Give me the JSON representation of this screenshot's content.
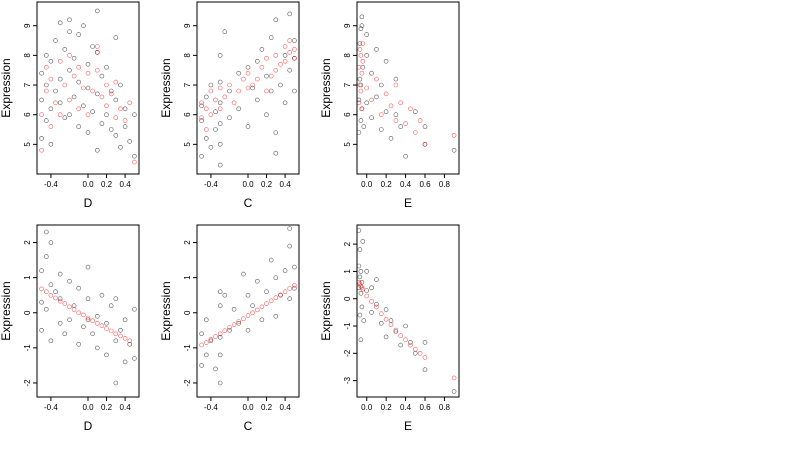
{
  "figure": {
    "ylabel": "Expression",
    "colors": {
      "base": "#000000",
      "highlight": "#ff0000"
    }
  },
  "chart_data": [
    {
      "type": "scatter",
      "row": 0,
      "col": 0,
      "xlabel": "D",
      "ylabel": "Expression",
      "xlim": [
        -0.55,
        0.55
      ],
      "ylim": [
        4.0,
        9.8
      ],
      "xticks": [
        -0.4,
        0.0,
        0.2,
        0.4
      ],
      "xtick_labels": [
        "-0.4",
        "0.0",
        "0.2",
        "0.4"
      ],
      "yticks": [
        5,
        6,
        7,
        8,
        9
      ],
      "ytick_labels": [
        "5",
        "6",
        "7",
        "8",
        "9"
      ],
      "series": [
        {
          "color": "#000000",
          "x": [
            -0.5,
            -0.5,
            -0.5,
            -0.45,
            -0.45,
            -0.45,
            -0.4,
            -0.4,
            -0.4,
            -0.35,
            -0.35,
            -0.3,
            -0.3,
            -0.3,
            -0.25,
            -0.25,
            -0.2,
            -0.2,
            -0.2,
            -0.15,
            -0.15,
            -0.1,
            -0.1,
            -0.1,
            -0.05,
            -0.05,
            0.0,
            0.0,
            0.0,
            0.05,
            0.05,
            0.1,
            0.1,
            0.1,
            0.15,
            0.15,
            0.2,
            0.2,
            0.25,
            0.25,
            0.3,
            0.3,
            0.35,
            0.35,
            0.4,
            0.4,
            0.45,
            0.5,
            0.5,
            0.3,
            -0.2,
            0.1
          ],
          "y": [
            5.2,
            6.5,
            7.4,
            5.8,
            7.0,
            8.0,
            6.2,
            7.8,
            5.0,
            6.8,
            8.5,
            6.4,
            7.2,
            9.1,
            5.9,
            8.2,
            6.0,
            7.5,
            8.8,
            6.6,
            7.9,
            5.6,
            7.1,
            8.7,
            6.3,
            9.0,
            5.4,
            6.9,
            7.7,
            6.1,
            8.3,
            6.7,
            8.1,
            9.5,
            5.7,
            7.3,
            6.0,
            7.6,
            5.5,
            6.8,
            5.3,
            6.5,
            4.9,
            7.0,
            5.6,
            6.2,
            5.1,
            4.6,
            6.0,
            8.6,
            9.2,
            4.8
          ]
        },
        {
          "color": "#ff0000",
          "x": [
            -0.5,
            -0.5,
            -0.45,
            -0.45,
            -0.4,
            -0.4,
            -0.35,
            -0.3,
            -0.3,
            -0.25,
            -0.2,
            -0.2,
            -0.15,
            -0.1,
            -0.1,
            -0.05,
            0.0,
            0.0,
            0.05,
            0.1,
            0.1,
            0.1,
            0.15,
            0.2,
            0.2,
            0.25,
            0.3,
            0.3,
            0.35,
            0.4,
            0.45,
            0.5
          ],
          "y": [
            4.8,
            6.0,
            6.8,
            7.6,
            5.6,
            7.2,
            6.4,
            7.8,
            6.0,
            7.0,
            6.5,
            8.0,
            7.3,
            6.2,
            7.6,
            6.9,
            7.4,
            6.0,
            6.8,
            8.1,
            8.3,
            7.5,
            6.6,
            7.0,
            6.3,
            6.7,
            5.9,
            7.1,
            6.2,
            5.8,
            6.4,
            4.4
          ]
        }
      ]
    },
    {
      "type": "scatter",
      "row": 0,
      "col": 1,
      "xlabel": "C",
      "ylabel": "Expression",
      "xlim": [
        -0.55,
        0.55
      ],
      "ylim": [
        4.0,
        9.8
      ],
      "xticks": [
        -0.4,
        0.0,
        0.2,
        0.4
      ],
      "xtick_labels": [
        "-0.4",
        "0.0",
        "0.2",
        "0.4"
      ],
      "yticks": [
        5,
        6,
        7,
        8,
        9
      ],
      "ytick_labels": [
        "5",
        "6",
        "7",
        "8",
        "9"
      ],
      "series": [
        {
          "color": "#000000",
          "x": [
            -0.5,
            -0.5,
            -0.5,
            -0.45,
            -0.45,
            -0.4,
            -0.4,
            -0.35,
            -0.35,
            -0.3,
            -0.3,
            -0.3,
            -0.3,
            -0.3,
            -0.25,
            -0.2,
            -0.2,
            -0.1,
            -0.1,
            0.0,
            0.0,
            0.05,
            0.1,
            0.1,
            0.15,
            0.2,
            0.2,
            0.25,
            0.25,
            0.3,
            0.3,
            0.35,
            0.4,
            0.4,
            0.45,
            0.45,
            0.5,
            0.5,
            0.5,
            -0.3,
            0.3
          ],
          "y": [
            4.6,
            5.8,
            6.3,
            5.2,
            6.6,
            4.9,
            7.0,
            5.5,
            6.1,
            4.3,
            5.0,
            5.7,
            6.4,
            7.1,
            8.8,
            5.9,
            6.8,
            6.2,
            7.4,
            5.6,
            7.6,
            6.9,
            6.5,
            7.8,
            8.2,
            6.0,
            7.3,
            6.8,
            8.6,
            5.4,
            9.2,
            7.0,
            6.4,
            8.0,
            7.5,
            9.4,
            6.8,
            7.9,
            8.5,
            8.0,
            4.7
          ]
        },
        {
          "color": "#ff0000",
          "x": [
            -0.5,
            -0.5,
            -0.45,
            -0.45,
            -0.4,
            -0.4,
            -0.35,
            -0.3,
            -0.3,
            -0.25,
            -0.2,
            -0.15,
            -0.1,
            -0.05,
            0.0,
            0.0,
            0.05,
            0.1,
            0.15,
            0.2,
            0.2,
            0.25,
            0.3,
            0.3,
            0.35,
            0.4,
            0.4,
            0.45,
            0.45,
            0.5,
            0.5
          ],
          "y": [
            5.9,
            6.4,
            5.5,
            6.2,
            6.0,
            6.8,
            6.5,
            6.2,
            6.9,
            6.6,
            7.0,
            6.4,
            6.8,
            7.2,
            6.9,
            7.4,
            7.0,
            7.2,
            7.6,
            6.8,
            7.9,
            7.3,
            7.5,
            8.0,
            7.7,
            7.8,
            8.3,
            8.1,
            8.5,
            7.9,
            8.2
          ]
        }
      ]
    },
    {
      "type": "scatter",
      "row": 0,
      "col": 2,
      "xlabel": "E",
      "ylabel": "Expression",
      "xlim": [
        -0.1,
        0.95
      ],
      "ylim": [
        4.0,
        9.8
      ],
      "xticks": [
        0.0,
        0.2,
        0.4,
        0.6,
        0.8
      ],
      "xtick_labels": [
        "0.0",
        "0.2",
        "0.4",
        "0.6",
        "0.8"
      ],
      "yticks": [
        5,
        6,
        7,
        8,
        9
      ],
      "ytick_labels": [
        "5",
        "6",
        "7",
        "8",
        "9"
      ],
      "series": [
        {
          "color": "#000000",
          "x": [
            -0.08,
            -0.08,
            -0.07,
            -0.07,
            -0.06,
            -0.06,
            -0.06,
            -0.05,
            -0.05,
            -0.04,
            -0.03,
            0.0,
            0.0,
            0.05,
            0.05,
            0.1,
            0.1,
            0.15,
            0.15,
            0.2,
            0.2,
            0.25,
            0.3,
            0.3,
            0.35,
            0.4,
            0.5,
            0.6,
            0.6,
            0.9,
            -0.05,
            0.0
          ],
          "y": [
            5.4,
            6.5,
            7.2,
            8.4,
            5.8,
            7.0,
            8.9,
            6.2,
            9.3,
            7.6,
            5.6,
            6.4,
            8.0,
            5.9,
            7.4,
            6.6,
            8.2,
            5.5,
            7.0,
            6.1,
            7.8,
            5.2,
            6.0,
            7.2,
            5.6,
            4.6,
            6.1,
            5.0,
            5.6,
            4.8,
            9.0,
            8.7
          ]
        },
        {
          "color": "#ff0000",
          "x": [
            -0.08,
            -0.08,
            -0.07,
            -0.07,
            -0.06,
            -0.06,
            -0.05,
            -0.05,
            -0.04,
            -0.04,
            0.0,
            0.05,
            0.1,
            0.15,
            0.2,
            0.25,
            0.3,
            0.3,
            0.35,
            0.4,
            0.45,
            0.5,
            0.55,
            0.6,
            0.9
          ],
          "y": [
            6.4,
            7.6,
            8.2,
            7.0,
            6.8,
            8.0,
            7.4,
            6.2,
            7.8,
            8.4,
            6.9,
            6.5,
            7.2,
            6.0,
            6.7,
            6.3,
            5.8,
            7.0,
            6.4,
            5.7,
            6.2,
            5.4,
            5.8,
            5.0,
            5.3
          ]
        }
      ]
    },
    {
      "type": "scatter",
      "row": 1,
      "col": 0,
      "xlabel": "D",
      "ylabel": "Expression",
      "xlim": [
        -0.55,
        0.55
      ],
      "ylim": [
        -2.4,
        2.5
      ],
      "xticks": [
        -0.4,
        0.0,
        0.2,
        0.4
      ],
      "xtick_labels": [
        "-0.4",
        "0.0",
        "0.2",
        "0.4"
      ],
      "yticks": [
        -2,
        -1,
        0,
        1,
        2
      ],
      "ytick_labels": [
        "-2",
        "-1",
        "0",
        "1",
        "2"
      ],
      "series": [
        {
          "color": "#000000",
          "x": [
            -0.5,
            -0.5,
            -0.5,
            -0.45,
            -0.45,
            -0.4,
            -0.4,
            -0.4,
            -0.35,
            -0.3,
            -0.3,
            -0.3,
            -0.25,
            -0.2,
            -0.2,
            -0.15,
            -0.1,
            -0.1,
            -0.05,
            0.0,
            0.0,
            0.0,
            0.05,
            0.1,
            0.1,
            0.15,
            0.2,
            0.2,
            0.25,
            0.3,
            0.3,
            0.35,
            0.4,
            0.4,
            0.45,
            0.5,
            0.5,
            -0.45,
            0.3
          ],
          "y": [
            1.2,
            0.3,
            -0.5,
            1.6,
            0.1,
            2.0,
            0.8,
            -0.8,
            0.6,
            1.1,
            -0.3,
            0.4,
            -0.6,
            0.9,
            -0.2,
            0.2,
            0.7,
            -0.9,
            -0.4,
            1.3,
            -0.2,
            0.4,
            -0.6,
            -0.1,
            -1.0,
            0.5,
            -0.3,
            -1.2,
            0.2,
            -0.8,
            0.4,
            -0.5,
            -1.4,
            -0.2,
            -0.9,
            0.1,
            -1.3,
            2.3,
            -2.0
          ]
        },
        {
          "color": "#ff0000",
          "x": [
            -0.5,
            -0.45,
            -0.4,
            -0.35,
            -0.3,
            -0.25,
            -0.2,
            -0.15,
            -0.1,
            -0.05,
            0.0,
            0.05,
            0.1,
            0.15,
            0.2,
            0.25,
            0.3,
            0.35,
            0.4,
            0.45
          ],
          "y": [
            0.68,
            0.6,
            0.5,
            0.42,
            0.33,
            0.26,
            0.17,
            0.09,
            0.0,
            -0.06,
            -0.15,
            -0.23,
            -0.3,
            -0.37,
            -0.45,
            -0.52,
            -0.6,
            -0.66,
            -0.73,
            -0.8
          ]
        }
      ]
    },
    {
      "type": "scatter",
      "row": 1,
      "col": 1,
      "xlabel": "C",
      "ylabel": "Expression",
      "xlim": [
        -0.55,
        0.55
      ],
      "ylim": [
        -2.4,
        2.5
      ],
      "xticks": [
        -0.4,
        0.0,
        0.2,
        0.4
      ],
      "xtick_labels": [
        "-0.4",
        "0.0",
        "0.2",
        "0.4"
      ],
      "yticks": [
        -2,
        -1,
        0,
        1,
        2
      ],
      "ytick_labels": [
        "-2",
        "-1",
        "0",
        "1",
        "2"
      ],
      "series": [
        {
          "color": "#000000",
          "x": [
            -0.5,
            -0.5,
            -0.45,
            -0.45,
            -0.4,
            -0.35,
            -0.3,
            -0.3,
            -0.3,
            -0.3,
            -0.25,
            -0.2,
            -0.15,
            -0.1,
            -0.05,
            0.0,
            0.0,
            0.05,
            0.1,
            0.15,
            0.2,
            0.25,
            0.3,
            0.3,
            0.35,
            0.4,
            0.45,
            0.45,
            0.5,
            0.5,
            -0.3,
            0.45
          ],
          "y": [
            -1.5,
            -0.6,
            -1.2,
            -0.2,
            -0.8,
            -1.6,
            -0.7,
            0.2,
            -1.2,
            0.6,
            0.5,
            -0.5,
            0.1,
            -0.3,
            1.1,
            -0.5,
            0.5,
            0.2,
            0.9,
            -0.2,
            0.6,
            1.5,
            -0.1,
            1.0,
            0.5,
            1.2,
            0.4,
            1.9,
            0.7,
            1.3,
            -2.0,
            2.4
          ]
        },
        {
          "color": "#ff0000",
          "x": [
            -0.5,
            -0.45,
            -0.4,
            -0.35,
            -0.3,
            -0.25,
            -0.2,
            -0.15,
            -0.1,
            -0.05,
            0.0,
            0.05,
            0.1,
            0.15,
            0.2,
            0.25,
            0.3,
            0.35,
            0.4,
            0.45,
            0.5
          ],
          "y": [
            -0.92,
            -0.85,
            -0.76,
            -0.68,
            -0.6,
            -0.51,
            -0.42,
            -0.34,
            -0.25,
            -0.17,
            -0.08,
            0.0,
            0.08,
            0.17,
            0.26,
            0.34,
            0.43,
            0.51,
            0.6,
            0.69,
            0.78
          ]
        }
      ]
    },
    {
      "type": "scatter",
      "row": 1,
      "col": 2,
      "xlabel": "E",
      "ylabel": "Expression",
      "xlim": [
        -0.1,
        0.95
      ],
      "ylim": [
        -3.6,
        2.7
      ],
      "xticks": [
        0.0,
        0.2,
        0.4,
        0.6,
        0.8
      ],
      "xtick_labels": [
        "0.0",
        "0.2",
        "0.4",
        "0.6",
        "0.8"
      ],
      "yticks": [
        -3,
        -2,
        -1,
        0,
        1,
        2
      ],
      "ytick_labels": [
        "-3",
        "-2",
        "-1",
        "0",
        "1",
        "2"
      ],
      "series": [
        {
          "color": "#000000",
          "x": [
            -0.08,
            -0.08,
            -0.07,
            -0.07,
            -0.07,
            -0.06,
            -0.06,
            -0.05,
            -0.05,
            -0.04,
            -0.03,
            0.0,
            0.0,
            0.05,
            0.05,
            0.1,
            0.1,
            0.15,
            0.2,
            0.2,
            0.25,
            0.3,
            0.35,
            0.4,
            0.45,
            0.5,
            0.6,
            0.6,
            0.9,
            -0.08,
            -0.06
          ],
          "y": [
            0.4,
            1.2,
            -0.6,
            0.8,
            1.8,
            0.2,
            1.0,
            -0.3,
            0.6,
            2.1,
            -0.8,
            0.3,
            1.0,
            -0.5,
            0.4,
            -0.2,
            0.7,
            -0.9,
            -0.4,
            -1.4,
            -0.8,
            -1.2,
            -1.7,
            -1.0,
            -1.6,
            -2.0,
            -1.6,
            -2.6,
            -3.4,
            2.5,
            -1.5
          ]
        },
        {
          "color": "#ff0000",
          "x": [
            -0.08,
            -0.07,
            -0.06,
            -0.05,
            -0.04,
            0.0,
            0.05,
            0.1,
            0.15,
            0.2,
            0.25,
            0.3,
            0.35,
            0.4,
            0.45,
            0.5,
            0.55,
            0.6,
            0.9
          ],
          "y": [
            0.6,
            0.55,
            0.45,
            0.4,
            0.35,
            0.1,
            -0.1,
            -0.3,
            -0.55,
            -0.75,
            -0.95,
            -1.15,
            -1.35,
            -1.5,
            -1.7,
            -1.85,
            -2.0,
            -2.15,
            -2.9
          ]
        }
      ]
    }
  ]
}
